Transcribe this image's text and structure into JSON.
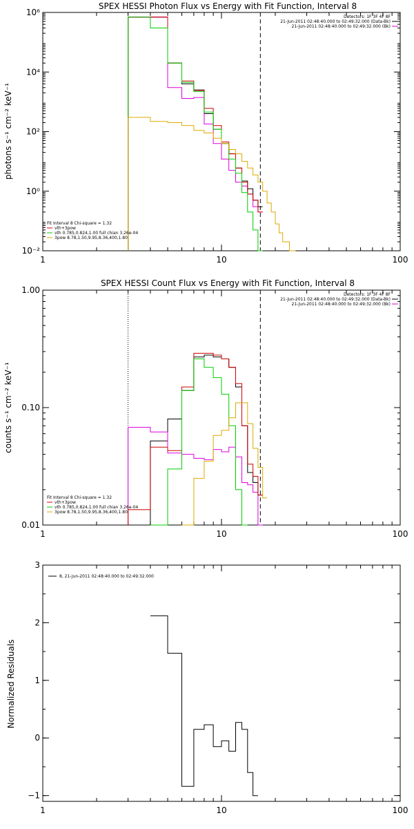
{
  "chart_data": [
    {
      "type": "line",
      "title": "SPEX HESSI Photon Flux vs Energy with Fit Function, Interval 8",
      "xlabel": "",
      "ylabel": "photons s⁻¹ cm⁻² keV⁻¹",
      "xscale": "log",
      "yscale": "log",
      "xlim": [
        1,
        100
      ],
      "ylim": [
        0.01,
        1000000
      ],
      "x_ticks": [
        {
          "v": 1,
          "label": "1"
        },
        {
          "v": 10,
          "label": "10"
        },
        {
          "v": 100,
          "label": "100"
        }
      ],
      "y_ticks": [
        {
          "v": 0.01,
          "label": "10⁻²"
        },
        {
          "v": 1,
          "label": "10⁰"
        },
        {
          "v": 100,
          "label": "10²"
        },
        {
          "v": 10000,
          "label": "10⁴"
        },
        {
          "v": 1000000,
          "label": "10⁶"
        }
      ],
      "vlines": [
        {
          "x": 3.0,
          "style": "dotted"
        },
        {
          "x": 16.5,
          "style": "dashed"
        }
      ],
      "legend_top": [
        "Detectors: 1F 3F 4F 8F",
        "21-Jun-2011 02:48:40.000 to 02:49:32.000 (Data-Bk)",
        "21-Jun-2011 02:48:40.000 to 02:49:32.000 (Bk)"
      ],
      "legend_top_colors": [
        "",
        "#000000",
        "#dd00dd"
      ],
      "legend_bottom": [
        "Fit Interval 8   Chi-square = 1.32",
        "vth+3pow",
        "vth 0.785,0.824,1.00  full chian 3.26e-04",
        "3pow 8.78,1.50,9.95,8.36,400,1.80"
      ],
      "legend_bottom_colors": [
        "",
        "#cc0000",
        "#00cc00",
        "#ddaa00"
      ],
      "edges": [
        3,
        4,
        5,
        6,
        7,
        8,
        9,
        10,
        11,
        12,
        13,
        14,
        15,
        16,
        17,
        18,
        19,
        20,
        21,
        22,
        24,
        26
      ],
      "series": [
        {
          "color": "#000000",
          "values": [
            700000,
            700000,
            20000,
            4000,
            2500,
            400,
            120,
            40,
            18,
            6,
            2.2,
            1.2,
            0.5,
            0.3,
            null,
            null,
            null,
            null,
            null,
            null,
            null
          ]
        },
        {
          "color": "#dd00dd",
          "values": [
            700000,
            700000,
            3000,
            1300,
            1400,
            180,
            40,
            12,
            5,
            2,
            1.5,
            0.8,
            0.3,
            0.2,
            null,
            null,
            null,
            null,
            null,
            null,
            null
          ]
        },
        {
          "color": "#cc0000",
          "values": [
            700000,
            700000,
            20000,
            5000,
            2400,
            600,
            160,
            45,
            18,
            6,
            2,
            0.8,
            0.5,
            0.2,
            null,
            null,
            null,
            null,
            null,
            null,
            null
          ]
        },
        {
          "color": "#00cc00",
          "values": [
            700000,
            300000,
            20000,
            4500,
            2200,
            450,
            120,
            40,
            12,
            4,
            0.9,
            0.2,
            0.05,
            0.01,
            null,
            null,
            null,
            null,
            null,
            null,
            null
          ]
        },
        {
          "color": "#ddaa00",
          "values": [
            300,
            220,
            200,
            160,
            110,
            90,
            60,
            40,
            25,
            18,
            10,
            6,
            3.5,
            2,
            1,
            0.4,
            0.2,
            0.08,
            0.04,
            0.02,
            0.01
          ]
        }
      ]
    },
    {
      "type": "line",
      "title": "SPEX HESSI Count Flux vs Energy with Fit Function, Interval 8",
      "xlabel": "",
      "ylabel": "counts s⁻¹ cm⁻² keV⁻¹",
      "xscale": "log",
      "yscale": "log",
      "xlim": [
        1,
        100
      ],
      "ylim": [
        0.01,
        1.0
      ],
      "x_ticks": [
        {
          "v": 1,
          "label": "1"
        },
        {
          "v": 10,
          "label": "10"
        },
        {
          "v": 100,
          "label": "100"
        }
      ],
      "y_ticks": [
        {
          "v": 0.01,
          "label": "0.01"
        },
        {
          "v": 0.1,
          "label": "0.10"
        },
        {
          "v": 1.0,
          "label": "1.00"
        }
      ],
      "vlines": [
        {
          "x": 3.0,
          "style": "dotted"
        },
        {
          "x": 16.5,
          "style": "dashed"
        }
      ],
      "legend_top": [
        "Detectors: 1F 3F 4F 8F",
        "21-Jun-2011 02:48:40.000 to 02:49:32.000 (Data-Bk)",
        "21-Jun-2011 02:48:40.000 to 02:49:32.000 (Bk)"
      ],
      "legend_top_colors": [
        "",
        "#000000",
        "#dd00dd"
      ],
      "legend_bottom": [
        "Fit Interval 8   Chi-square = 1.32",
        "vth+3pow",
        "vth 0.785,0.824,1.00  full chian 3.26e-04",
        "3pow 8.78,1.50,9.95,8.36,400,1.80"
      ],
      "legend_bottom_colors": [
        "",
        "#cc0000",
        "#00cc00",
        "#ddaa00"
      ],
      "edges": [
        3,
        4,
        5,
        6,
        7,
        8,
        9,
        10,
        11,
        12,
        13,
        14,
        15,
        16,
        17,
        18
      ],
      "series": [
        {
          "color": "#000000",
          "values": [
            null,
            0.052,
            0.08,
            0.14,
            0.27,
            0.28,
            0.27,
            0.26,
            0.22,
            0.15,
            0.07,
            0.028,
            0.023,
            0.018,
            null
          ]
        },
        {
          "color": "#dd00dd",
          "values": [
            0.068,
            0.062,
            0.041,
            0.04,
            0.037,
            0.036,
            0.044,
            0.042,
            0.046,
            0.038,
            0.023,
            0.022,
            0.019,
            0.0098,
            null
          ]
        },
        {
          "color": "#cc0000",
          "values": [
            0.0135,
            0.046,
            0.043,
            0.15,
            0.29,
            0.29,
            0.28,
            0.26,
            0.22,
            0.16,
            0.07,
            0.033,
            0.026,
            0.018,
            null
          ]
        },
        {
          "color": "#00cc00",
          "values": [
            null,
            0.0098,
            0.03,
            0.14,
            0.26,
            0.22,
            0.18,
            0.13,
            0.07,
            0.02,
            0.0098,
            null,
            null,
            null,
            null
          ]
        },
        {
          "color": "#ddaa00",
          "values": [
            null,
            null,
            null,
            0.0098,
            0.025,
            0.035,
            0.058,
            0.064,
            0.082,
            0.11,
            0.11,
            0.073,
            0.045,
            0.031,
            0.017
          ]
        }
      ]
    },
    {
      "type": "line",
      "title": "",
      "xlabel": "",
      "ylabel": "Normalized Residuals",
      "xscale": "log",
      "yscale": "linear",
      "xlim": [
        1,
        100
      ],
      "ylim": [
        -1.1,
        3
      ],
      "x_ticks": [
        {
          "v": 1,
          "label": "1"
        },
        {
          "v": 10,
          "label": "10"
        },
        {
          "v": 100,
          "label": "100"
        }
      ],
      "y_ticks": [
        {
          "v": -1,
          "label": "−1"
        },
        {
          "v": 0,
          "label": "0"
        },
        {
          "v": 1,
          "label": "1"
        },
        {
          "v": 2,
          "label": "2"
        },
        {
          "v": 3,
          "label": "3"
        }
      ],
      "vlines": [],
      "legend_top": [],
      "legend_top_colors": [],
      "legend_bottom": [],
      "legend_bottom_colors": [],
      "legend_left": "8, 21-Jun-2011 02:48:40.000 to 02:49:32.000",
      "edges": [
        4,
        5,
        6,
        7,
        8,
        9,
        10,
        11,
        12,
        13,
        14,
        15,
        16,
        17
      ],
      "series": [
        {
          "color": "#000000",
          "values": [
            2.12,
            1.47,
            -0.84,
            0.15,
            0.23,
            -0.15,
            -0.05,
            -0.23,
            0.27,
            0.15,
            -0.6,
            -1.0,
            null
          ]
        }
      ]
    }
  ]
}
